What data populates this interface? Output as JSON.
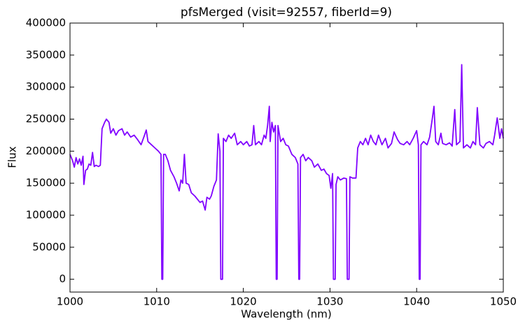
{
  "chart_data": {
    "type": "line",
    "title": "pfsMerged (visit=92557, fiberId=9)",
    "x_label": "Wavelength (nm)",
    "y_label": "Flux",
    "xlim": [
      1000,
      1050
    ],
    "xticks": [
      1000,
      1010,
      1020,
      1030,
      1040,
      1050
    ],
    "ylim": [
      -20000,
      400000
    ],
    "yticks": [
      0,
      50000,
      100000,
      150000,
      200000,
      250000,
      300000,
      350000,
      400000
    ],
    "color": "#8000ff",
    "x": [
      1000.0,
      1000.3,
      1000.5,
      1000.7,
      1000.9,
      1001.1,
      1001.3,
      1001.5,
      1001.6,
      1001.8,
      1002.0,
      1002.2,
      1002.4,
      1002.6,
      1002.8,
      1003.0,
      1003.3,
      1003.5,
      1003.7,
      1004.0,
      1004.2,
      1004.5,
      1004.7,
      1005.0,
      1005.3,
      1005.6,
      1006.0,
      1006.3,
      1006.6,
      1007.0,
      1007.4,
      1007.8,
      1008.2,
      1008.6,
      1008.8,
      1009.0,
      1009.4,
      1009.8,
      1010.2,
      1010.5,
      1010.6,
      1010.7,
      1010.8,
      1011.0,
      1011.3,
      1011.6,
      1012.0,
      1012.3,
      1012.6,
      1012.8,
      1013.0,
      1013.2,
      1013.4,
      1013.7,
      1014.0,
      1014.4,
      1014.7,
      1015.0,
      1015.3,
      1015.6,
      1015.8,
      1016.1,
      1016.3,
      1016.6,
      1016.9,
      1017.1,
      1017.3,
      1017.4,
      1017.6,
      1017.7,
      1018.0,
      1018.3,
      1018.6,
      1019.0,
      1019.3,
      1019.7,
      1020.0,
      1020.4,
      1020.7,
      1021.0,
      1021.2,
      1021.4,
      1021.8,
      1022.1,
      1022.4,
      1022.6,
      1022.8,
      1023.0,
      1023.1,
      1023.3,
      1023.5,
      1023.7,
      1023.8,
      1023.9,
      1024.0,
      1024.3,
      1024.6,
      1024.9,
      1025.2,
      1025.6,
      1026.0,
      1026.3,
      1026.4,
      1026.5,
      1026.6,
      1026.9,
      1027.2,
      1027.5,
      1027.9,
      1028.2,
      1028.6,
      1029.0,
      1029.3,
      1029.6,
      1029.9,
      1030.1,
      1030.3,
      1030.4,
      1030.6,
      1030.7,
      1030.9,
      1031.2,
      1031.6,
      1031.9,
      1032.0,
      1032.2,
      1032.3,
      1032.6,
      1033.0,
      1033.2,
      1033.5,
      1033.8,
      1034.1,
      1034.4,
      1034.7,
      1035.0,
      1035.3,
      1035.6,
      1036.0,
      1036.4,
      1036.7,
      1037.1,
      1037.4,
      1037.8,
      1038.1,
      1038.5,
      1038.9,
      1039.2,
      1039.6,
      1040.0,
      1040.2,
      1040.3,
      1040.4,
      1040.5,
      1040.8,
      1041.2,
      1041.5,
      1041.8,
      1042.0,
      1042.2,
      1042.5,
      1042.8,
      1043.0,
      1043.4,
      1043.8,
      1044.1,
      1044.4,
      1044.6,
      1045.0,
      1045.2,
      1045.4,
      1045.8,
      1046.2,
      1046.5,
      1046.8,
      1047.0,
      1047.3,
      1047.7,
      1048.0,
      1048.4,
      1048.8,
      1049.0,
      1049.3,
      1049.6,
      1049.8,
      1050.0
    ],
    "values": [
      195000,
      185000,
      175000,
      190000,
      180000,
      188000,
      178000,
      192000,
      148000,
      170000,
      172000,
      180000,
      178000,
      198000,
      176000,
      178000,
      176000,
      178000,
      235000,
      245000,
      250000,
      245000,
      228000,
      235000,
      225000,
      232000,
      235000,
      225000,
      230000,
      222000,
      225000,
      218000,
      210000,
      225000,
      233000,
      215000,
      210000,
      205000,
      200000,
      195000,
      0,
      0,
      195000,
      195000,
      185000,
      170000,
      160000,
      150000,
      138000,
      155000,
      150000,
      195000,
      150000,
      148000,
      135000,
      130000,
      125000,
      120000,
      122000,
      108000,
      128000,
      125000,
      130000,
      145000,
      155000,
      227000,
      200000,
      0,
      0,
      220000,
      215000,
      225000,
      220000,
      228000,
      210000,
      215000,
      210000,
      215000,
      208000,
      210000,
      240000,
      210000,
      215000,
      210000,
      225000,
      220000,
      240000,
      270000,
      215000,
      245000,
      230000,
      240000,
      0,
      0,
      240000,
      215000,
      220000,
      210000,
      208000,
      195000,
      190000,
      180000,
      0,
      0,
      190000,
      195000,
      185000,
      190000,
      185000,
      175000,
      180000,
      170000,
      172000,
      165000,
      162000,
      142000,
      165000,
      0,
      0,
      148000,
      160000,
      155000,
      158000,
      157000,
      0,
      0,
      160000,
      158000,
      158000,
      205000,
      215000,
      210000,
      220000,
      210000,
      225000,
      215000,
      210000,
      225000,
      210000,
      220000,
      205000,
      212000,
      230000,
      218000,
      212000,
      210000,
      215000,
      210000,
      220000,
      232000,
      210000,
      0,
      0,
      210000,
      215000,
      210000,
      222000,
      250000,
      270000,
      215000,
      210000,
      228000,
      212000,
      210000,
      213000,
      208000,
      265000,
      210000,
      215000,
      335000,
      205000,
      210000,
      205000,
      215000,
      210000,
      268000,
      210000,
      205000,
      212000,
      215000,
      210000,
      225000,
      252000,
      220000,
      235000,
      220000
    ]
  }
}
